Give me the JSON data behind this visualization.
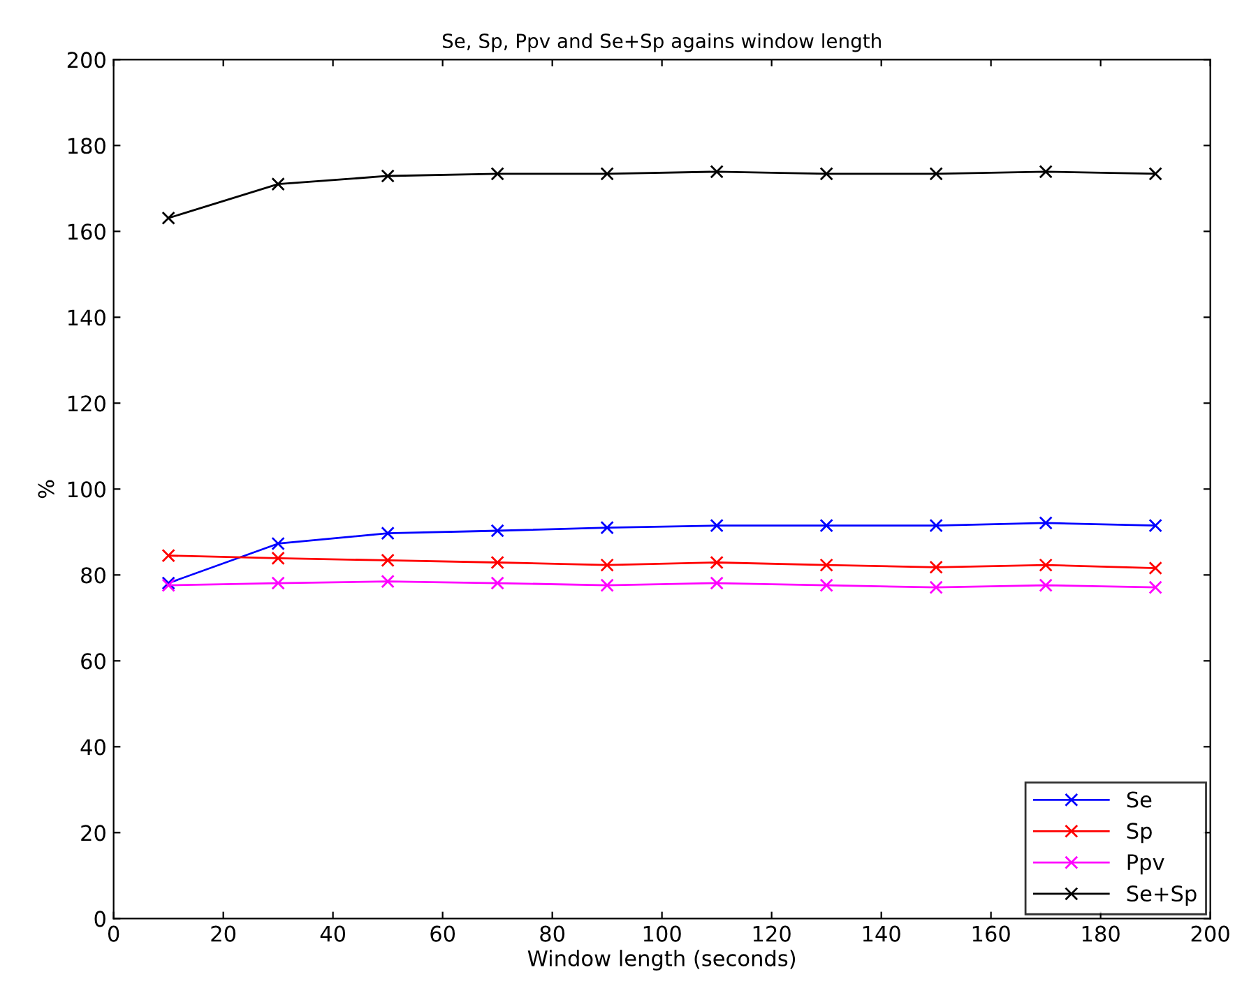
{
  "chart_data": {
    "type": "line",
    "title": "Se, Sp, Ppv and Se+Sp agains window length",
    "xlabel": "Window length (seconds)",
    "ylabel": "%",
    "x": [
      10,
      30,
      50,
      70,
      90,
      110,
      130,
      150,
      170,
      190
    ],
    "series": [
      {
        "name": "Se",
        "color": "#0000ff",
        "values": [
          78.1,
          87.3,
          89.7,
          90.3,
          91.0,
          91.5,
          91.5,
          91.5,
          92.1,
          91.5
        ]
      },
      {
        "name": "Sp",
        "color": "#ff0000",
        "values": [
          84.5,
          83.9,
          83.4,
          82.9,
          82.3,
          82.9,
          82.3,
          81.8,
          82.3,
          81.6
        ]
      },
      {
        "name": "Ppv",
        "color": "#ff00ff",
        "values": [
          77.6,
          78.1,
          78.5,
          78.1,
          77.6,
          78.1,
          77.6,
          77.1,
          77.6,
          77.1
        ]
      },
      {
        "name": "Se+Sp",
        "color": "#000000",
        "values": [
          163.1,
          171.0,
          172.9,
          173.4,
          173.4,
          173.9,
          173.4,
          173.4,
          173.9,
          173.4
        ]
      }
    ],
    "xlim": [
      0,
      200
    ],
    "xticks": [
      0,
      20,
      40,
      60,
      80,
      100,
      120,
      140,
      160,
      180,
      200
    ],
    "ylim": [
      0,
      200
    ],
    "yticks": [
      0,
      20,
      40,
      60,
      80,
      100,
      120,
      140,
      160,
      180,
      200
    ],
    "grid": false,
    "legend": "bottom right",
    "marker": "cross",
    "line_style": "solid"
  }
}
